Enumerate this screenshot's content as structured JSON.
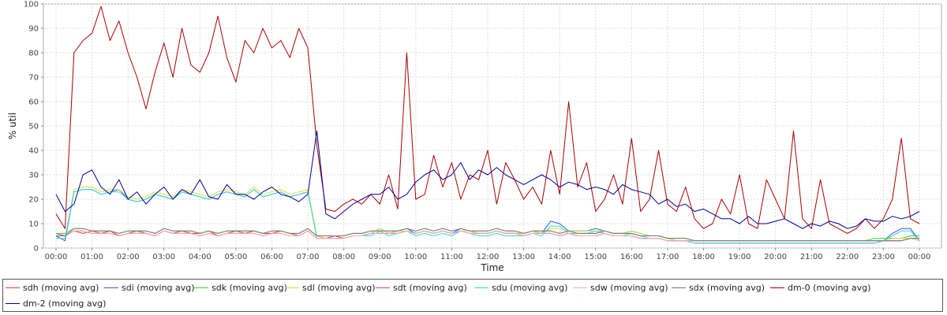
{
  "chart_data": {
    "type": "line",
    "xlabel": "Time",
    "ylabel": "% util",
    "ylim": [
      0,
      100
    ],
    "yticks": [
      0,
      10,
      20,
      30,
      40,
      50,
      60,
      70,
      80,
      90,
      100
    ],
    "xticks": [
      "00:00",
      "01:00",
      "02:00",
      "03:00",
      "04:00",
      "05:00",
      "06:00",
      "07:00",
      "08:00",
      "09:00",
      "10:00",
      "11:00",
      "12:00",
      "13:00",
      "14:00",
      "15:00",
      "16:00",
      "17:00",
      "18:00",
      "19:00",
      "20:00",
      "21:00",
      "22:00",
      "23:00",
      "00:00"
    ],
    "grid": true,
    "legend_position": "bottom",
    "x_hours": [
      0.0,
      0.25,
      0.5,
      0.75,
      1.0,
      1.25,
      1.5,
      1.75,
      2.0,
      2.25,
      2.5,
      2.75,
      3.0,
      3.25,
      3.5,
      3.75,
      4.0,
      4.25,
      4.5,
      4.75,
      5.0,
      5.25,
      5.5,
      5.75,
      6.0,
      6.25,
      6.5,
      6.75,
      7.0,
      7.25,
      7.5,
      7.75,
      8.0,
      8.25,
      8.5,
      8.75,
      9.0,
      9.25,
      9.5,
      9.75,
      10.0,
      10.25,
      10.5,
      10.75,
      11.0,
      11.25,
      11.5,
      11.75,
      12.0,
      12.25,
      12.5,
      12.75,
      13.0,
      13.25,
      13.5,
      13.75,
      14.0,
      14.25,
      14.5,
      14.75,
      15.0,
      15.25,
      15.5,
      15.75,
      16.0,
      16.25,
      16.5,
      16.75,
      17.0,
      17.25,
      17.5,
      17.75,
      18.0,
      18.25,
      18.5,
      18.75,
      19.0,
      19.25,
      19.5,
      19.75,
      20.0,
      20.25,
      20.5,
      20.75,
      21.0,
      21.25,
      21.5,
      21.75,
      22.0,
      22.25,
      22.5,
      22.75,
      23.0,
      23.25,
      23.5,
      23.75,
      24.0
    ],
    "series": [
      {
        "name": "sdh (moving avg)",
        "color": "#ff3333",
        "values": [
          6,
          5,
          7,
          6,
          7,
          6,
          7,
          5,
          6,
          7,
          6,
          5,
          7,
          6,
          7,
          6,
          6,
          7,
          5,
          6,
          7,
          6,
          7,
          6,
          6,
          7,
          6,
          5,
          7,
          4,
          4,
          5,
          4,
          5,
          5,
          6,
          6,
          6,
          6,
          7,
          6,
          7,
          6,
          7,
          6,
          7,
          6,
          6,
          6,
          7,
          6,
          6,
          5,
          6,
          6,
          6,
          5,
          6,
          5,
          5,
          5,
          6,
          5,
          5,
          5,
          4,
          4,
          4,
          3,
          3,
          3,
          3,
          3,
          3,
          3,
          3,
          3,
          3,
          3,
          3,
          3,
          3,
          3,
          3,
          3,
          3,
          3,
          3,
          3,
          3,
          3,
          3,
          3,
          3,
          3,
          4,
          4
        ]
      },
      {
        "name": "sdi (moving avg)",
        "color": "#3355ff",
        "values": [
          5,
          3,
          23,
          24,
          24,
          22,
          23,
          24,
          20,
          19,
          20,
          22,
          21,
          20,
          23,
          22,
          21,
          20,
          22,
          23,
          22,
          21,
          24,
          21,
          22,
          23,
          21,
          22,
          23,
          5,
          4,
          4,
          4,
          5,
          5,
          6,
          8,
          6,
          7,
          8,
          6,
          7,
          6,
          7,
          6,
          8,
          7,
          6,
          6,
          7,
          6,
          6,
          6,
          7,
          6,
          11,
          10,
          7,
          7,
          7,
          8,
          7,
          6,
          6,
          7,
          6,
          5,
          5,
          4,
          3,
          3,
          2,
          2,
          2,
          2,
          2,
          2,
          2,
          2,
          2,
          2,
          2,
          2,
          2,
          2,
          2,
          2,
          2,
          2,
          2,
          2,
          2,
          3,
          6,
          8,
          8,
          3
        ]
      },
      {
        "name": "sdk (moving avg)",
        "color": "#33dd33",
        "values": [
          6,
          6,
          8,
          8,
          7,
          7,
          7,
          6,
          7,
          7,
          7,
          6,
          8,
          7,
          7,
          7,
          6,
          7,
          6,
          7,
          7,
          7,
          7,
          6,
          7,
          7,
          6,
          6,
          8,
          5,
          5,
          5,
          5,
          6,
          6,
          7,
          7,
          7,
          7,
          8,
          7,
          8,
          7,
          8,
          7,
          8,
          7,
          7,
          7,
          8,
          7,
          7,
          6,
          7,
          7,
          7,
          6,
          7,
          6,
          6,
          6,
          7,
          6,
          6,
          6,
          5,
          5,
          5,
          4,
          4,
          4,
          3,
          3,
          3,
          3,
          3,
          3,
          3,
          3,
          3,
          3,
          3,
          3,
          3,
          3,
          3,
          3,
          3,
          3,
          3,
          3,
          4,
          4,
          4,
          4,
          5,
          5
        ]
      },
      {
        "name": "sdl (moving avg)",
        "color": "#dddd33",
        "values": [
          4,
          4,
          24,
          25,
          25,
          23,
          24,
          24,
          21,
          20,
          21,
          23,
          22,
          21,
          24,
          23,
          22,
          21,
          23,
          24,
          23,
          22,
          25,
          22,
          23,
          24,
          22,
          23,
          24,
          5,
          4,
          4,
          4,
          5,
          5,
          6,
          8,
          6,
          7,
          7,
          6,
          7,
          6,
          7,
          6,
          7,
          7,
          6,
          6,
          7,
          6,
          6,
          6,
          7,
          6,
          8,
          8,
          7,
          7,
          7,
          7,
          7,
          6,
          6,
          7,
          6,
          5,
          5,
          4,
          3,
          3,
          3,
          3,
          3,
          3,
          3,
          3,
          3,
          3,
          3,
          3,
          3,
          3,
          3,
          3,
          3,
          3,
          3,
          3,
          3,
          3,
          3,
          3,
          4,
          4,
          4,
          3
        ]
      },
      {
        "name": "sdt (moving avg)",
        "color": "#dd33dd",
        "values": [
          5,
          5,
          7,
          7,
          6,
          6,
          6,
          5,
          6,
          6,
          6,
          5,
          7,
          6,
          6,
          6,
          5,
          6,
          5,
          6,
          6,
          6,
          6,
          5,
          6,
          6,
          5,
          5,
          7,
          4,
          4,
          4,
          4,
          5,
          5,
          6,
          6,
          6,
          6,
          7,
          6,
          7,
          6,
          7,
          6,
          7,
          6,
          6,
          6,
          7,
          6,
          6,
          5,
          6,
          6,
          6,
          5,
          6,
          5,
          5,
          5,
          6,
          5,
          5,
          5,
          4,
          4,
          4,
          3,
          3,
          3,
          3,
          3,
          3,
          3,
          3,
          3,
          3,
          3,
          3,
          3,
          3,
          3,
          3,
          3,
          3,
          3,
          3,
          3,
          3,
          3,
          3,
          3,
          3,
          3,
          4,
          4
        ]
      },
      {
        "name": "sdu (moving avg)",
        "color": "#33dddd",
        "values": [
          4,
          4,
          23,
          24,
          24,
          22,
          23,
          23,
          20,
          19,
          20,
          22,
          21,
          20,
          23,
          22,
          21,
          20,
          22,
          23,
          22,
          21,
          24,
          21,
          22,
          23,
          21,
          22,
          23,
          4,
          4,
          4,
          4,
          5,
          5,
          5,
          7,
          5,
          6,
          7,
          5,
          6,
          5,
          6,
          5,
          7,
          6,
          5,
          5,
          6,
          5,
          5,
          5,
          6,
          5,
          9,
          9,
          6,
          6,
          6,
          7,
          6,
          5,
          5,
          6,
          5,
          4,
          4,
          3,
          3,
          3,
          2,
          2,
          2,
          2,
          2,
          2,
          2,
          2,
          2,
          2,
          2,
          2,
          2,
          2,
          2,
          2,
          2,
          2,
          2,
          2,
          2,
          3,
          5,
          7,
          7,
          3
        ]
      },
      {
        "name": "sdw (moving avg)",
        "color": "#ffaaaa",
        "values": [
          5,
          5,
          7,
          7,
          6,
          6,
          6,
          5,
          6,
          6,
          6,
          5,
          7,
          6,
          6,
          6,
          5,
          6,
          5,
          6,
          6,
          6,
          6,
          5,
          6,
          6,
          5,
          5,
          7,
          4,
          4,
          4,
          4,
          5,
          5,
          6,
          6,
          6,
          6,
          7,
          6,
          7,
          6,
          7,
          6,
          7,
          6,
          6,
          6,
          7,
          6,
          6,
          5,
          6,
          6,
          6,
          5,
          6,
          5,
          5,
          5,
          6,
          5,
          5,
          5,
          4,
          4,
          4,
          3,
          3,
          3,
          3,
          3,
          3,
          3,
          3,
          3,
          3,
          3,
          3,
          3,
          3,
          3,
          3,
          3,
          3,
          3,
          3,
          3,
          3,
          3,
          3,
          3,
          3,
          3,
          4,
          4
        ]
      },
      {
        "name": "sdx (moving avg)",
        "color": "#777777",
        "values": [
          5,
          5,
          8,
          8,
          7,
          7,
          7,
          6,
          7,
          7,
          7,
          6,
          8,
          7,
          7,
          7,
          6,
          7,
          6,
          7,
          7,
          7,
          7,
          6,
          7,
          7,
          6,
          6,
          8,
          5,
          5,
          5,
          5,
          6,
          6,
          7,
          7,
          7,
          7,
          8,
          7,
          8,
          7,
          8,
          7,
          8,
          7,
          7,
          7,
          8,
          7,
          7,
          6,
          7,
          7,
          7,
          6,
          7,
          6,
          6,
          6,
          7,
          6,
          6,
          6,
          5,
          5,
          5,
          4,
          4,
          4,
          3,
          3,
          3,
          3,
          3,
          3,
          3,
          3,
          3,
          3,
          3,
          3,
          3,
          3,
          3,
          3,
          3,
          3,
          3,
          3,
          3,
          3,
          3,
          3,
          4,
          4
        ]
      },
      {
        "name": "dm-0 (moving avg)",
        "color": "#aa0000",
        "values": [
          14,
          8,
          80,
          85,
          88,
          99,
          85,
          93,
          80,
          70,
          57,
          72,
          84,
          70,
          90,
          75,
          72,
          80,
          95,
          78,
          68,
          85,
          80,
          90,
          82,
          85,
          78,
          90,
          82,
          42,
          16,
          15,
          18,
          20,
          18,
          22,
          18,
          30,
          16,
          80,
          20,
          22,
          38,
          25,
          35,
          20,
          30,
          28,
          40,
          18,
          35,
          28,
          20,
          25,
          18,
          40,
          22,
          60,
          25,
          35,
          15,
          20,
          30,
          18,
          45,
          15,
          20,
          40,
          18,
          15,
          25,
          12,
          8,
          10,
          20,
          14,
          30,
          10,
          8,
          28,
          20,
          12,
          48,
          12,
          8,
          28,
          10,
          8,
          6,
          8,
          12,
          8,
          12,
          20,
          45,
          12,
          10
        ]
      },
      {
        "name": "dm-2 (moving avg)",
        "color": "#000099",
        "values": [
          22,
          15,
          18,
          30,
          32,
          25,
          22,
          28,
          20,
          23,
          18,
          22,
          25,
          20,
          24,
          22,
          28,
          21,
          20,
          26,
          22,
          22,
          20,
          23,
          25,
          22,
          21,
          19,
          22,
          48,
          14,
          12,
          15,
          18,
          20,
          22,
          22,
          25,
          20,
          22,
          27,
          30,
          32,
          28,
          30,
          35,
          28,
          32,
          30,
          33,
          30,
          28,
          26,
          28,
          30,
          28,
          25,
          27,
          26,
          24,
          25,
          24,
          22,
          26,
          24,
          23,
          22,
          18,
          20,
          17,
          18,
          15,
          16,
          14,
          12,
          12,
          10,
          13,
          10,
          10,
          11,
          12,
          10,
          8,
          10,
          9,
          11,
          10,
          8,
          9,
          12,
          11,
          11,
          13,
          12,
          13,
          15
        ]
      }
    ]
  },
  "legend": {
    "items": [
      {
        "label": "sdh (moving avg)",
        "color": "#ff3333"
      },
      {
        "label": "sdi (moving avg)",
        "color": "#3355ff"
      },
      {
        "label": "sdk (moving avg)",
        "color": "#33dd33"
      },
      {
        "label": "sdl (moving avg)",
        "color": "#dddd33"
      },
      {
        "label": "sdt (moving avg)",
        "color": "#dd33dd"
      },
      {
        "label": "sdu (moving avg)",
        "color": "#33dddd"
      },
      {
        "label": "sdw (moving avg)",
        "color": "#ffaaaa"
      },
      {
        "label": "sdx (moving avg)",
        "color": "#777777"
      },
      {
        "label": "dm-0 (moving avg)",
        "color": "#aa0000"
      },
      {
        "label": "dm-2 (moving avg)",
        "color": "#000099"
      }
    ]
  }
}
